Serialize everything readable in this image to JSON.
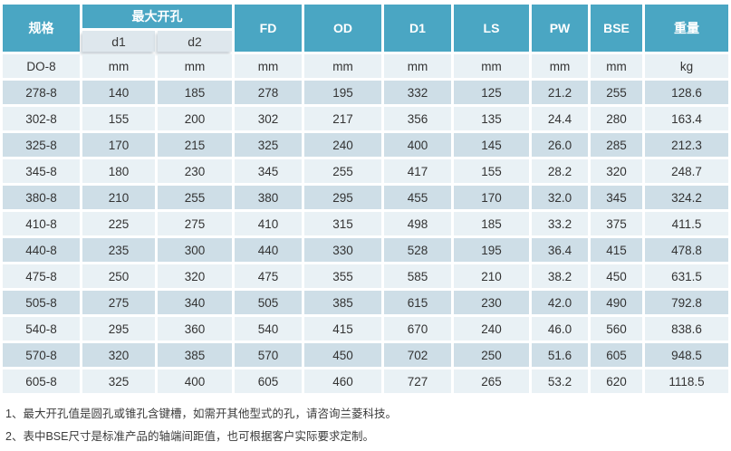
{
  "table": {
    "group_header": "最大开孔",
    "headers": {
      "spec": "规格",
      "d1": "d1",
      "d2": "d2",
      "fd": "FD",
      "od": "OD",
      "d1_big": "D1",
      "ls": "LS",
      "pw": "PW",
      "bse": "BSE",
      "weight": "重量"
    },
    "units_row": [
      "DO-8",
      "mm",
      "mm",
      "mm",
      "mm",
      "mm",
      "mm",
      "mm",
      "mm",
      "kg"
    ],
    "rows": [
      [
        "278-8",
        "140",
        "185",
        "278",
        "195",
        "332",
        "125",
        "21.2",
        "255",
        "128.6"
      ],
      [
        "302-8",
        "155",
        "200",
        "302",
        "217",
        "356",
        "135",
        "24.4",
        "280",
        "163.4"
      ],
      [
        "325-8",
        "170",
        "215",
        "325",
        "240",
        "400",
        "145",
        "26.0",
        "285",
        "212.3"
      ],
      [
        "345-8",
        "180",
        "230",
        "345",
        "255",
        "417",
        "155",
        "28.2",
        "320",
        "248.7"
      ],
      [
        "380-8",
        "210",
        "255",
        "380",
        "295",
        "455",
        "170",
        "32.0",
        "345",
        "324.2"
      ],
      [
        "410-8",
        "225",
        "275",
        "410",
        "315",
        "498",
        "185",
        "33.2",
        "375",
        "411.5"
      ],
      [
        "440-8",
        "235",
        "300",
        "440",
        "330",
        "528",
        "195",
        "36.4",
        "415",
        "478.8"
      ],
      [
        "475-8",
        "250",
        "320",
        "475",
        "355",
        "585",
        "210",
        "38.2",
        "450",
        "631.5"
      ],
      [
        "505-8",
        "275",
        "340",
        "505",
        "385",
        "615",
        "230",
        "42.0",
        "490",
        "792.8"
      ],
      [
        "540-8",
        "295",
        "360",
        "540",
        "415",
        "670",
        "240",
        "46.0",
        "560",
        "838.6"
      ],
      [
        "570-8",
        "320",
        "385",
        "570",
        "450",
        "702",
        "250",
        "51.6",
        "605",
        "948.5"
      ],
      [
        "605-8",
        "325",
        "400",
        "605",
        "460",
        "727",
        "265",
        "53.2",
        "620",
        "1118.5"
      ]
    ]
  },
  "notes": [
    "1、最大开孔值是圆孔或锥孔含键槽，如需开其他型式的孔，请咨询兰菱科技。",
    "2、表中BSE尺寸是标准产品的轴端间距值，也可根据客户实际要求定制。"
  ],
  "colors": {
    "header_teal": "#4AA6C3",
    "header_top_edge": "#2E85A3",
    "subheader_bg": "#DEE7ED",
    "band_dark": "#CEDEE7",
    "band_light": "#E9F1F5",
    "text_dark": "#333333",
    "header_text": "#FFFFFF"
  }
}
